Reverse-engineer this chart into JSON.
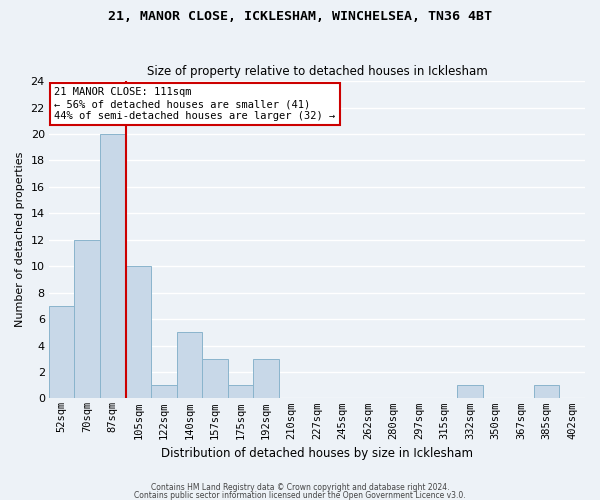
{
  "title1": "21, MANOR CLOSE, ICKLESHAM, WINCHELSEA, TN36 4BT",
  "title2": "Size of property relative to detached houses in Icklesham",
  "xlabel": "Distribution of detached houses by size in Icklesham",
  "ylabel": "Number of detached properties",
  "bin_labels": [
    "52sqm",
    "70sqm",
    "87sqm",
    "105sqm",
    "122sqm",
    "140sqm",
    "157sqm",
    "175sqm",
    "192sqm",
    "210sqm",
    "227sqm",
    "245sqm",
    "262sqm",
    "280sqm",
    "297sqm",
    "315sqm",
    "332sqm",
    "350sqm",
    "367sqm",
    "385sqm",
    "402sqm"
  ],
  "bar_values": [
    7,
    12,
    20,
    10,
    1,
    5,
    3,
    1,
    3,
    0,
    0,
    0,
    0,
    0,
    0,
    0,
    1,
    0,
    0,
    1,
    0
  ],
  "bar_color": "#c8d8e8",
  "bar_edgecolor": "#8ab4cc",
  "vline_x": 2.5,
  "vline_color": "#cc0000",
  "annotation_title": "21 MANOR CLOSE: 111sqm",
  "annotation_line1": "← 56% of detached houses are smaller (41)",
  "annotation_line2": "44% of semi-detached houses are larger (32) →",
  "annotation_box_facecolor": "#ffffff",
  "annotation_box_edgecolor": "#cc0000",
  "ylim": [
    0,
    24
  ],
  "yticks": [
    0,
    2,
    4,
    6,
    8,
    10,
    12,
    14,
    16,
    18,
    20,
    22,
    24
  ],
  "footer1": "Contains HM Land Registry data © Crown copyright and database right 2024.",
  "footer2": "Contains public sector information licensed under the Open Government Licence v3.0.",
  "bg_color": "#edf2f7",
  "grid_color": "#ffffff"
}
